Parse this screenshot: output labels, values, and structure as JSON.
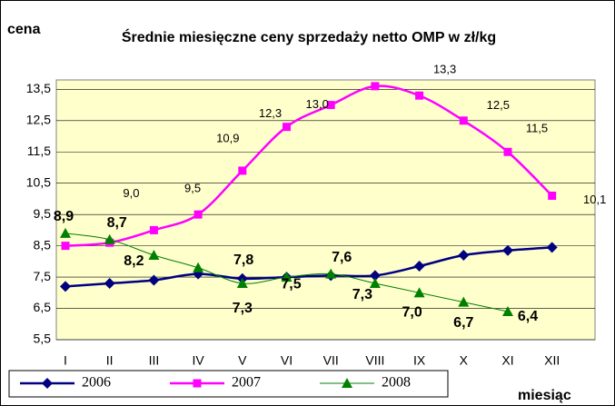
{
  "chart_data": {
    "type": "line",
    "title": "Średnie miesięczne ceny sprzedaży netto OMP w zł/kg",
    "y_label": "cena",
    "x_label": "miesiąc",
    "categories": [
      "I",
      "II",
      "III",
      "IV",
      "V",
      "VI",
      "VII",
      "VIII",
      "IX",
      "X",
      "XI",
      "XII"
    ],
    "ylim": [
      5.5,
      13.8
    ],
    "yticks": [
      {
        "value": 5.5,
        "label": "5,5"
      },
      {
        "value": 6.5,
        "label": "6,5"
      },
      {
        "value": 7.5,
        "label": "7,5"
      },
      {
        "value": 8.5,
        "label": "8,5"
      },
      {
        "value": 9.5,
        "label": "9,5"
      },
      {
        "value": 10.5,
        "label": "10,5"
      },
      {
        "value": 11.5,
        "label": "11,5"
      },
      {
        "value": 12.5,
        "label": "12,5"
      },
      {
        "value": 13.5,
        "label": "13,5"
      }
    ],
    "grid": true,
    "series": [
      {
        "name": "2006",
        "color": "#000080",
        "marker": "diamond",
        "values": [
          7.2,
          7.3,
          7.4,
          7.6,
          7.45,
          7.5,
          7.55,
          7.55,
          7.85,
          8.2,
          8.35,
          8.45
        ]
      },
      {
        "name": "2007",
        "color": "#ff00ff",
        "marker": "square",
        "values": [
          8.5,
          8.6,
          9.0,
          9.5,
          10.9,
          12.3,
          13.0,
          13.6,
          13.3,
          12.5,
          11.5,
          10.1
        ],
        "value_labels": [
          null,
          null,
          "9,0",
          "9,5",
          "10,9",
          "12,3",
          "13,0",
          null,
          "13,3",
          "12,5",
          "11,5",
          "10,1"
        ]
      },
      {
        "name": "2008",
        "color": "#008000",
        "marker": "triangle",
        "values": [
          8.9,
          8.7,
          8.2,
          7.8,
          7.3,
          7.5,
          7.6,
          7.3,
          7.0,
          6.7,
          6.4,
          null
        ],
        "value_labels": [
          "8,9",
          "8,7",
          "8,2",
          "7,8",
          "7,3",
          "7,5",
          "7,6",
          "7,3",
          "7,0",
          "6,7",
          "6,4",
          null
        ]
      }
    ]
  }
}
